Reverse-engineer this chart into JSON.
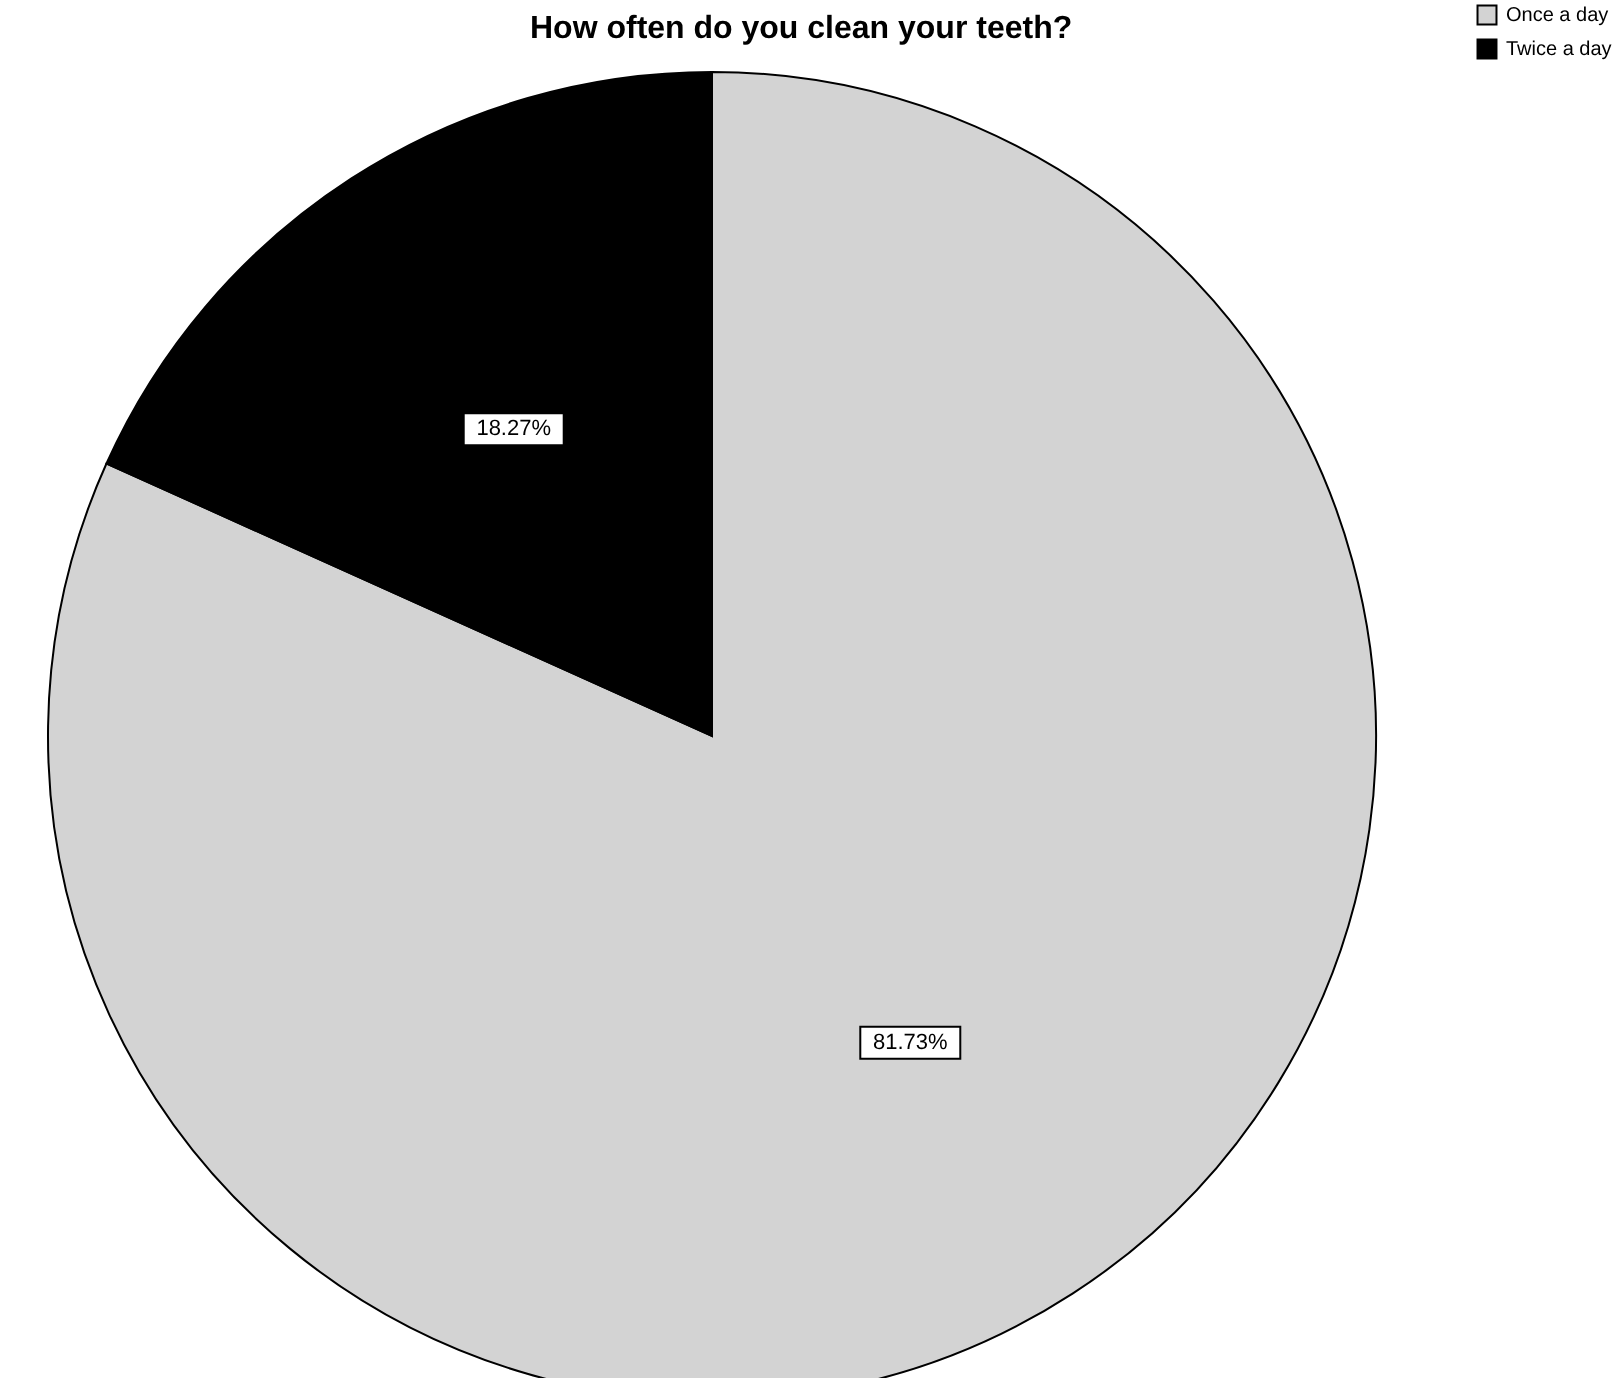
{
  "chart_data": {
    "type": "pie",
    "title": "How often do you clean your teeth?",
    "categories": [
      "Once a day",
      "Twice a day"
    ],
    "values": [
      81.73,
      18.27
    ],
    "colors": [
      "#d3d3d3",
      "#000000"
    ],
    "value_labels": [
      "81.73%",
      "18.27%"
    ],
    "legend": "top right"
  }
}
